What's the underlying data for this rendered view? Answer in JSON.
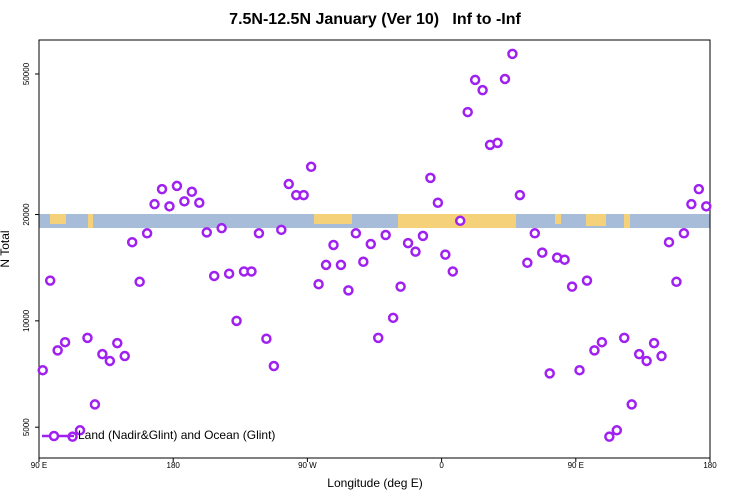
{
  "chart_data": {
    "type": "scatter",
    "title": "7.5N-12.5N January (Ver 10)   Inf to -Inf",
    "x_label": "Longitude (deg E)",
    "y_label": "N Total",
    "log_y": true,
    "legend_position": "bottom-left",
    "xlim": [
      90,
      540
    ],
    "xticks": [
      {
        "value": 90,
        "label": "90 E"
      },
      {
        "value": 180,
        "label": "180"
      },
      {
        "value": 270,
        "label": "90 W"
      },
      {
        "value": 360,
        "label": "0"
      },
      {
        "value": 450,
        "label": "90 E"
      },
      {
        "value": 540,
        "label": "180"
      }
    ],
    "ylim": [
      4090,
      62400
    ],
    "yticks": [
      5000,
      10000,
      20000,
      50000
    ],
    "x": [
      92.5,
      97.5,
      102.5,
      107.5,
      112.5,
      117.5,
      122.5,
      127.5,
      132.5,
      137.5,
      142.5,
      147.5,
      152.5,
      157.5,
      162.5,
      167.5,
      172.5,
      177.5,
      182.5,
      187.5,
      192.5,
      197.5,
      202.5,
      207.5,
      212.5,
      217.5,
      222.5,
      227.5,
      232.5,
      237.5,
      242.5,
      247.5,
      252.5,
      257.5,
      262.5,
      267.5,
      272.5,
      277.5,
      282.5,
      287.5,
      292.5,
      297.5,
      302.5,
      307.5,
      312.5,
      317.5,
      322.5,
      327.5,
      332.5,
      337.5,
      342.5,
      347.5,
      352.5,
      357.5,
      362.5,
      367.5,
      372.5,
      377.5,
      382.5,
      387.5,
      392.5,
      397.5,
      402.5,
      407.5,
      412.5,
      417.5,
      422.5,
      427.5,
      432.5,
      437.5,
      442.5,
      447.5,
      452.5,
      457.5,
      462.5,
      467.5,
      472.5,
      477.5,
      482.5,
      487.5,
      492.5,
      497.5,
      502.5,
      507.5,
      512.5,
      517.5,
      522.5,
      527.5,
      532.5,
      537.5
    ],
    "series": [
      {
        "name": "Land (Nadir&Glint) and Ocean (Glint)",
        "color": "#a020f0",
        "values": [
          7250,
          13000,
          8250,
          8700,
          4700,
          4900,
          8950,
          5800,
          8050,
          7700,
          8650,
          7950,
          16700,
          12900,
          17700,
          21400,
          23600,
          21100,
          24100,
          21800,
          23200,
          21600,
          17800,
          13400,
          18300,
          13600,
          10000,
          13800,
          13800,
          17700,
          8900,
          7450,
          18100,
          24400,
          22700,
          22700,
          27300,
          12700,
          14400,
          16400,
          14400,
          12200,
          17700,
          14700,
          16500,
          8950,
          17500,
          10200,
          12500,
          16600,
          15700,
          17400,
          25400,
          21600,
          15400,
          13800,
          19200,
          39000,
          48100,
          45000,
          31500,
          31900,
          48400,
          57000,
          22700,
          14600,
          17700,
          15600,
          7100,
          15100,
          14900,
          12500,
          7250,
          13000,
          8250,
          8700,
          4700,
          4900,
          8950,
          5800,
          8050,
          7700,
          8650,
          7950,
          16700,
          12900,
          17700,
          21400,
          23600,
          21100
        ]
      }
    ]
  }
}
